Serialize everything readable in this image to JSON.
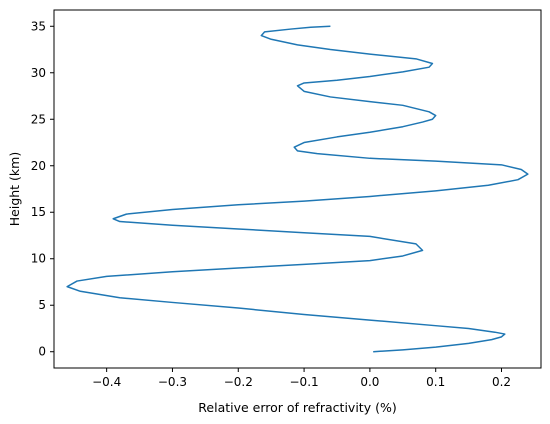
{
  "chart_data": {
    "type": "line",
    "xlabel": "Relative error of refractivity (%)",
    "ylabel": "Height (km)",
    "xlim": [
      -0.48,
      0.26
    ],
    "ylim": [
      -1.75,
      36.75
    ],
    "x_ticks": [
      -0.4,
      -0.3,
      -0.2,
      -0.1,
      0.0,
      0.1,
      0.2
    ],
    "x_tick_labels": [
      "−0.4",
      "−0.3",
      "−0.2",
      "−0.1",
      "0.0",
      "0.1",
      "0.2"
    ],
    "y_ticks": [
      0,
      5,
      10,
      15,
      20,
      25,
      30,
      35
    ],
    "y_tick_labels": [
      "0",
      "5",
      "10",
      "15",
      "20",
      "25",
      "30",
      "35"
    ],
    "grid": false,
    "colors": {
      "line": "#1f77b4",
      "axes": "#000000",
      "background": "#ffffff"
    },
    "series": [
      {
        "x": [
          0.005,
          0.05,
          0.1,
          0.15,
          0.185,
          0.2,
          0.205,
          0.19,
          0.15,
          0.1,
          0.0,
          -0.1,
          -0.2,
          -0.3,
          -0.38,
          -0.44,
          -0.46,
          -0.445,
          -0.4,
          -0.3,
          -0.2,
          -0.1,
          0.0,
          0.05,
          0.08,
          0.07,
          0.0,
          -0.1,
          -0.2,
          -0.3,
          -0.38,
          -0.39,
          -0.37,
          -0.3,
          -0.2,
          -0.1,
          0.0,
          0.1,
          0.18,
          0.225,
          0.24,
          0.23,
          0.2,
          0.1,
          0.0,
          -0.08,
          -0.11,
          -0.115,
          -0.1,
          -0.05,
          0.0,
          0.05,
          0.08,
          0.095,
          0.1,
          0.09,
          0.05,
          0.0,
          -0.06,
          -0.1,
          -0.11,
          -0.1,
          -0.05,
          0.0,
          0.05,
          0.09,
          0.095,
          0.07,
          0.0,
          -0.06,
          -0.11,
          -0.15,
          -0.165,
          -0.16,
          -0.12,
          -0.09,
          -0.06
        ],
        "y": [
          0.0,
          0.2,
          0.5,
          0.9,
          1.3,
          1.6,
          1.9,
          2.1,
          2.5,
          2.8,
          3.4,
          4.0,
          4.7,
          5.3,
          5.8,
          6.5,
          7.0,
          7.6,
          8.1,
          8.6,
          9.0,
          9.4,
          9.8,
          10.3,
          10.9,
          11.6,
          12.4,
          12.8,
          13.2,
          13.6,
          14.0,
          14.3,
          14.8,
          15.3,
          15.8,
          16.2,
          16.7,
          17.3,
          17.9,
          18.5,
          19.1,
          19.6,
          20.1,
          20.5,
          20.8,
          21.3,
          21.6,
          22.0,
          22.5,
          23.1,
          23.6,
          24.2,
          24.7,
          25.0,
          25.4,
          25.8,
          26.5,
          26.9,
          27.4,
          28.0,
          28.6,
          28.9,
          29.2,
          29.6,
          30.1,
          30.6,
          31.0,
          31.5,
          32.0,
          32.5,
          33.0,
          33.6,
          34.0,
          34.4,
          34.7,
          34.9,
          35.0
        ]
      }
    ]
  }
}
